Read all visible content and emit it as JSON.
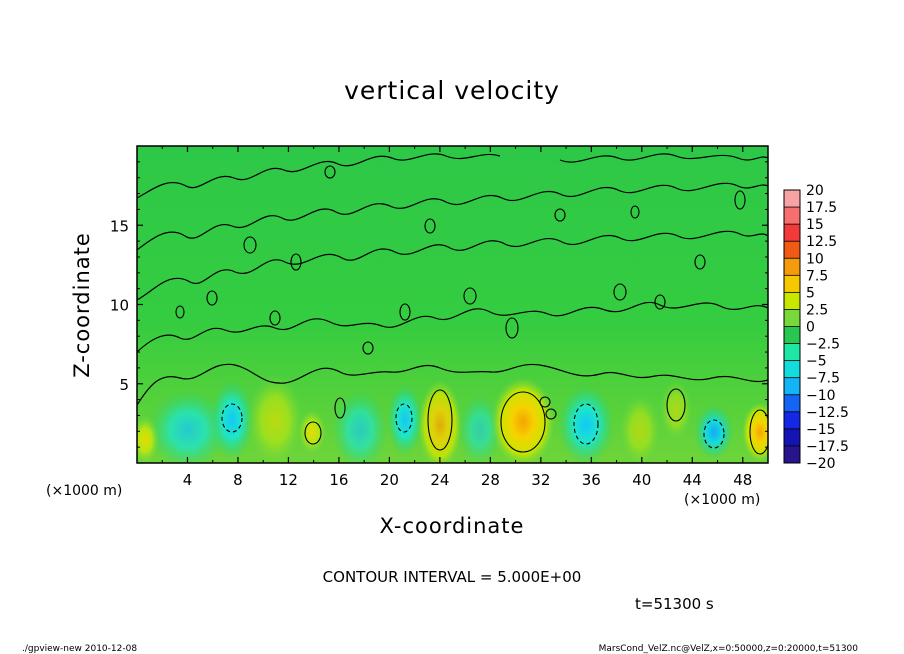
{
  "chart_data": {
    "type": "heatmap",
    "title": "vertical velocity",
    "xlabel": "X-coordinate",
    "ylabel": "Z-coordinate",
    "x_unit_label": "(×1000 m)",
    "x_unit_label_right": "(×1000 m)",
    "xlim": [
      0,
      50
    ],
    "ylim": [
      0,
      20
    ],
    "x_ticks": [
      4,
      8,
      12,
      16,
      20,
      24,
      28,
      32,
      36,
      40,
      44,
      48
    ],
    "y_ticks": [
      5,
      10,
      15
    ],
    "contour_interval_text": "CONTOUR INTERVAL = 5.000E+00",
    "time_text": "t=51300 s",
    "colorbar": {
      "levels": [
        "20",
        "17.5",
        "15",
        "12.5",
        "10",
        "7.5",
        "5",
        "2.5",
        "0",
        "−2.5",
        "−5",
        "−7.5",
        "−10",
        "−12.5",
        "−15",
        "−17.5",
        "−20"
      ],
      "colors": [
        "#f7a3a3",
        "#f56f6f",
        "#f23a3a",
        "#f05a14",
        "#f59a0a",
        "#f5c800",
        "#c8e600",
        "#78d83c",
        "#28c850",
        "#1ee6a5",
        "#14dcdc",
        "#14b4f5",
        "#1464f5",
        "#1428e6",
        "#1414b4",
        "#28148c",
        "#5a1496"
      ]
    },
    "features": [
      {
        "kind": "updraft",
        "x": 30.5,
        "z": 2.5,
        "peak": 7.5
      },
      {
        "kind": "updraft",
        "x": 24.0,
        "z": 3.0,
        "peak": 5
      },
      {
        "kind": "updraft",
        "x": 49.0,
        "z": 2.0,
        "peak": 7.5
      },
      {
        "kind": "downdraft",
        "x": 7.5,
        "z": 3.0,
        "peak": -5
      },
      {
        "kind": "downdraft",
        "x": 21.0,
        "z": 3.0,
        "peak": -5
      },
      {
        "kind": "downdraft",
        "x": 35.5,
        "z": 2.5,
        "peak": -5
      },
      {
        "kind": "downdraft",
        "x": 45.5,
        "z": 1.5,
        "peak": -7.5
      }
    ]
  },
  "footer": {
    "left": "./gpview-new   2010-12-08",
    "right": "MarsCond_VelZ.nc@VelZ,x=0:50000,z=0:20000,t=51300"
  }
}
